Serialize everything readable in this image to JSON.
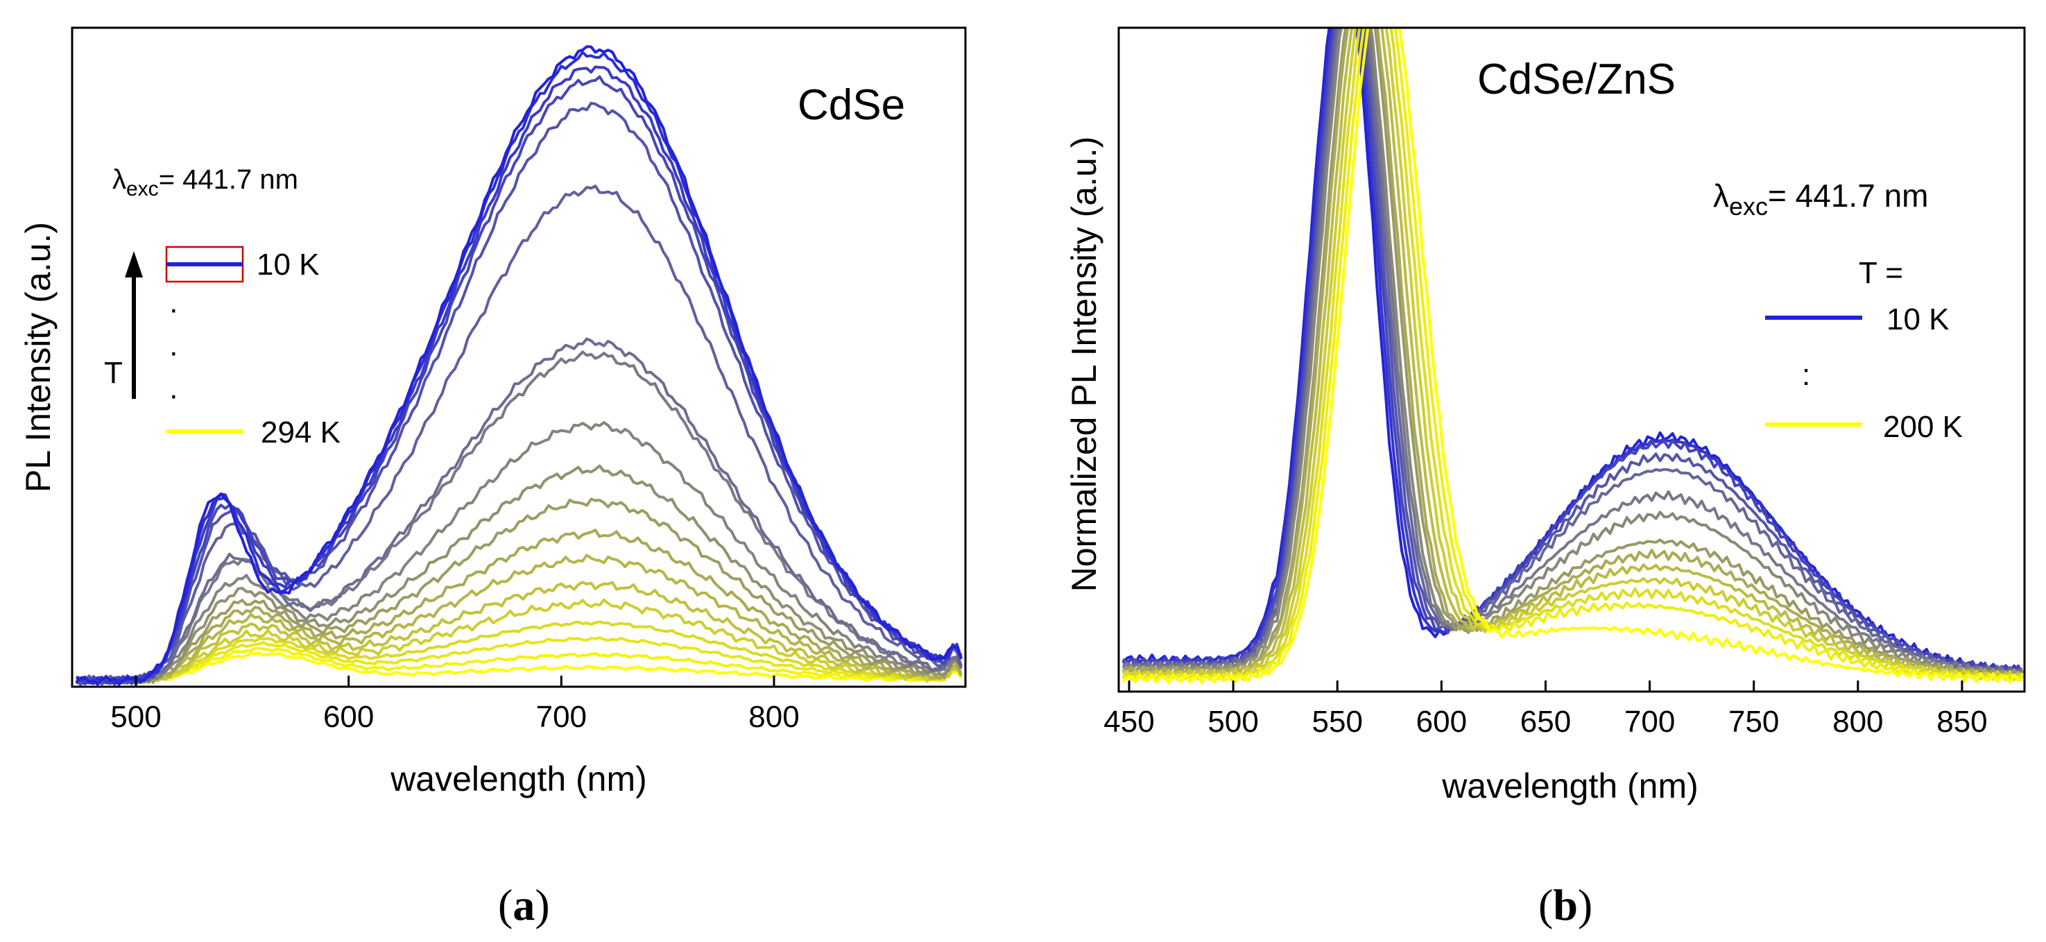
{
  "chart_data": [
    {
      "panel": "a",
      "panel_label": "a",
      "type": "line",
      "title": "CdSe",
      "xlabel": "wavelength (nm)",
      "ylabel": "PL Intensity (a.u.)",
      "xlim": [
        470,
        890
      ],
      "ylim": [
        0,
        1.0
      ],
      "xticks": [
        500,
        600,
        700,
        800
      ],
      "excitation": {
        "symbol": "λ",
        "sub": "exc",
        "text": "= 441.7 nm"
      },
      "legend": {
        "arrow_label": "T",
        "items": [
          {
            "label": "10 K",
            "color": "#2222dd"
          },
          {
            "label": "294 K",
            "color": "#ffff00"
          }
        ],
        "dots": "·"
      },
      "colors": {
        "cold": "#2222dd",
        "hot": "#ffff00"
      },
      "model": {
        "n_curves": 19,
        "peak_main_x": 715,
        "peak_main_w": 68,
        "peak_small_x": 537,
        "peak_small_w": 13,
        "baseline": 0.01,
        "tail_x": 885
      },
      "series": [
        {
          "name": "10 K",
          "main_peak": 0.99,
          "shoulder_peak": 0.25
        },
        {
          "name": "",
          "main_peak": 0.98,
          "shoulder_peak": 0.245
        },
        {
          "name": "",
          "main_peak": 0.96,
          "shoulder_peak": 0.24
        },
        {
          "name": "",
          "main_peak": 0.94,
          "shoulder_peak": 0.23
        },
        {
          "name": "",
          "main_peak": 0.9,
          "shoulder_peak": 0.22
        },
        {
          "name": "",
          "main_peak": 0.77,
          "shoulder_peak": 0.2
        },
        {
          "name": "",
          "main_peak": 0.53,
          "shoulder_peak": 0.16
        },
        {
          "name": "",
          "main_peak": 0.51,
          "shoulder_peak": 0.155
        },
        {
          "name": "",
          "main_peak": 0.4,
          "shoulder_peak": 0.13
        },
        {
          "name": "",
          "main_peak": 0.33,
          "shoulder_peak": 0.115
        },
        {
          "name": "",
          "main_peak": 0.28,
          "shoulder_peak": 0.1
        },
        {
          "name": "",
          "main_peak": 0.23,
          "shoulder_peak": 0.09
        },
        {
          "name": "",
          "main_peak": 0.19,
          "shoulder_peak": 0.08
        },
        {
          "name": "",
          "main_peak": 0.15,
          "shoulder_peak": 0.07
        },
        {
          "name": "",
          "main_peak": 0.12,
          "shoulder_peak": 0.06
        },
        {
          "name": "",
          "main_peak": 0.09,
          "shoulder_peak": 0.055
        },
        {
          "name": "",
          "main_peak": 0.065,
          "shoulder_peak": 0.05
        },
        {
          "name": "",
          "main_peak": 0.04,
          "shoulder_peak": 0.045
        },
        {
          "name": "294 K",
          "main_peak": 0.02,
          "shoulder_peak": 0.04
        }
      ]
    },
    {
      "panel": "b",
      "panel_label": "b",
      "type": "line",
      "title": "CdSe/ZnS",
      "xlabel": "wavelength (nm)",
      "ylabel": "Normalized PL Intensity (a.u.)",
      "xlim": [
        445,
        880
      ],
      "ylim": [
        0,
        1.0
      ],
      "xticks": [
        450,
        500,
        550,
        600,
        650,
        700,
        750,
        800,
        850
      ],
      "excitation": {
        "symbol": "λ",
        "sub": "exc",
        "text": "= 441.7 nm"
      },
      "legend": {
        "heading": "T =",
        "items": [
          {
            "label": "10 K",
            "color": "#2222dd"
          },
          {
            "label": "200 K",
            "color": "#ffff00"
          }
        ],
        "dots": ":"
      },
      "colors": {
        "cold": "#2222dd",
        "hot": "#ffff00"
      },
      "model": {
        "n_curves": 14,
        "peak_main_w": 16,
        "peak_broad_x": 708,
        "peak_broad_w": 55,
        "baseline": 0.02
      },
      "series": [
        {
          "name": "10 K",
          "main_x": 553,
          "broad_peak": 0.36
        },
        {
          "name": "",
          "main_x": 554,
          "broad_peak": 0.355
        },
        {
          "name": "",
          "main_x": 555,
          "broad_peak": 0.35
        },
        {
          "name": "",
          "main_x": 556,
          "broad_peak": 0.33
        },
        {
          "name": "",
          "main_x": 557,
          "broad_peak": 0.31
        },
        {
          "name": "",
          "main_x": 558,
          "broad_peak": 0.27
        },
        {
          "name": "",
          "main_x": 559,
          "broad_peak": 0.24
        },
        {
          "name": "",
          "main_x": 561,
          "broad_peak": 0.2
        },
        {
          "name": "",
          "main_x": 562,
          "broad_peak": 0.18
        },
        {
          "name": "",
          "main_x": 564,
          "broad_peak": 0.16
        },
        {
          "name": "",
          "main_x": 566,
          "broad_peak": 0.14
        },
        {
          "name": "",
          "main_x": 568,
          "broad_peak": 0.12
        },
        {
          "name": "",
          "main_x": 570,
          "broad_peak": 0.1
        },
        {
          "name": "200 K",
          "main_x": 572,
          "broad_peak": 0.06
        }
      ]
    }
  ]
}
